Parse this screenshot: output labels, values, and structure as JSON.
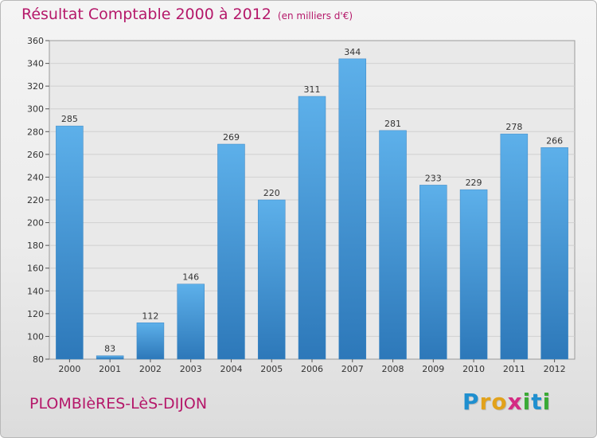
{
  "title": "Résultat Comptable 2000 à 2012",
  "subtitle": "(en milliers d'€)",
  "town": "PLOMBIèRES-LèS-DIJON",
  "logo": {
    "letters": [
      "P",
      "r",
      "o",
      "x",
      "i",
      "t",
      "i"
    ],
    "colors": [
      "#1f8fcf",
      "#e2a21b",
      "#e2a21b",
      "#d42b83",
      "#3aaa35",
      "#1f8fcf",
      "#3aaa35"
    ]
  },
  "colors": {
    "title": "#b5186a",
    "bar_top": "#5db0ea",
    "bar_bottom": "#2d78b9",
    "grid": "#d0d0d0"
  },
  "chart_data": {
    "type": "bar",
    "title": "Résultat Comptable 2000 à 2012",
    "subtitle": "(en milliers d'€)",
    "categories": [
      "2000",
      "2001",
      "2002",
      "2003",
      "2004",
      "2005",
      "2006",
      "2007",
      "2008",
      "2009",
      "2010",
      "2011",
      "2012"
    ],
    "values": [
      285,
      83,
      112,
      146,
      269,
      220,
      311,
      344,
      281,
      233,
      229,
      278,
      266
    ],
    "ylim": [
      80,
      360
    ],
    "yticks": [
      80,
      100,
      120,
      140,
      160,
      180,
      200,
      220,
      240,
      260,
      280,
      300,
      320,
      340,
      360
    ],
    "grid": true,
    "data_labels": true
  }
}
